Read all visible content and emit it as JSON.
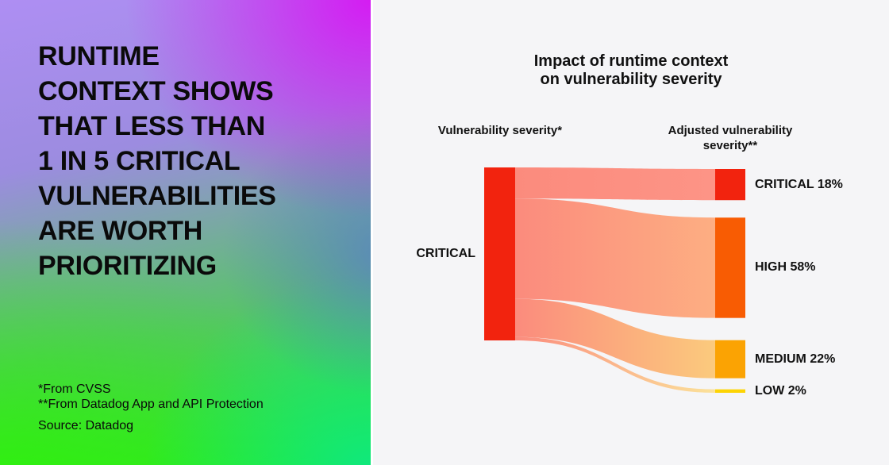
{
  "left_panel": {
    "headline_lines": [
      "RUNTIME",
      "CONTEXT SHOWS",
      "THAT LESS THAN",
      "1 IN 5 CRITICAL",
      "VULNERABILITIES",
      "ARE WORTH",
      "PRIORITIZING"
    ],
    "footnote_1": "*From CVSS",
    "footnote_2": "**From Datadog App and API Protection",
    "source": "Source: Datadog"
  },
  "chart_data": {
    "type": "sankey",
    "title_line1": "Impact of runtime context",
    "title_line2": "on vulnerability severity",
    "left_column_header": "Vulnerability severity*",
    "right_column_header": "Adjusted vulnerability severity**",
    "source_node": {
      "label": "CRITICAL",
      "value_pct": 100,
      "color": "#f2230e"
    },
    "flow_start_color": "#fb8b7d",
    "links": [
      {
        "target": "CRITICAL",
        "pct": 18,
        "display": "CRITICAL 18%",
        "node_color": "#f2230e",
        "flow_end_color": "#fd9486"
      },
      {
        "target": "HIGH",
        "pct": 58,
        "display": "HIGH 58%",
        "node_color": "#f85c03",
        "flow_end_color": "#fdae82"
      },
      {
        "target": "MEDIUM",
        "pct": 22,
        "display": "MEDIUM 22%",
        "node_color": "#fba303",
        "flow_end_color": "#fbca7d"
      },
      {
        "target": "LOW",
        "pct": 2,
        "display": "LOW 2%",
        "node_color": "#fdd404",
        "flow_end_color": "#fbe29a"
      }
    ]
  }
}
